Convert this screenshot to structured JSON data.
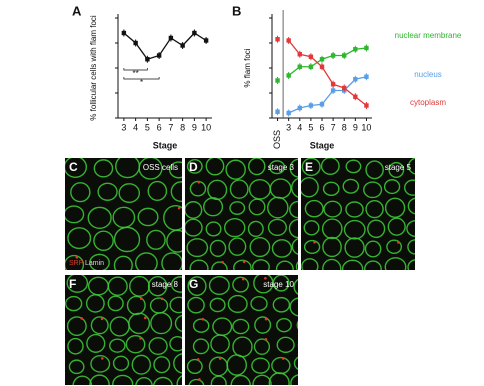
{
  "chart_data": [
    {
      "type": "line",
      "panel": "A",
      "x_label": "Stage",
      "y_label": "% follicular cells with flam foci",
      "categories": [
        "3",
        "4",
        "5",
        "6",
        "7",
        "8",
        "9",
        "10"
      ],
      "series": [
        {
          "color": "#111111",
          "values": [
            68,
            60,
            47,
            50,
            64,
            58,
            68,
            62
          ]
        }
      ],
      "ylim": [
        0,
        80
      ],
      "yticks": [
        0,
        20,
        40,
        60,
        80
      ],
      "annotations": [
        {
          "text": "**",
          "from": 0,
          "to": 2
        },
        {
          "text": "*",
          "from": 0,
          "to": 3
        }
      ]
    },
    {
      "type": "line",
      "panel": "B",
      "x_label": "Stage",
      "y_label": "% flam foci",
      "categories": [
        "OSS",
        "3",
        "4",
        "5",
        "6",
        "7",
        "8",
        "9",
        "10"
      ],
      "series": [
        {
          "name": "nuclear membrane",
          "color": "#2fb52f",
          "values": [
            30,
            34,
            41,
            41,
            47,
            50,
            50,
            55,
            56
          ]
        },
        {
          "name": "nucleus",
          "color": "#5b9ee6",
          "values": [
            5,
            4,
            8,
            10,
            11,
            22,
            22,
            31,
            33
          ]
        },
        {
          "name": "cytoplasm",
          "color": "#e2383a",
          "values": [
            63,
            62,
            51,
            49,
            41,
            27,
            24,
            17,
            10
          ]
        }
      ],
      "ylim": [
        0,
        80
      ],
      "yticks": [
        0,
        20,
        40,
        60,
        80
      ]
    }
  ],
  "images": [
    {
      "letter": "C",
      "caption": "OSS cells",
      "legend": [
        "SRP",
        "Lamin"
      ]
    },
    {
      "letter": "D",
      "caption": "stage 3"
    },
    {
      "letter": "E",
      "caption": "stage 5"
    },
    {
      "letter": "F",
      "caption": "stage 8"
    },
    {
      "letter": "G",
      "caption": "stage 10"
    }
  ]
}
